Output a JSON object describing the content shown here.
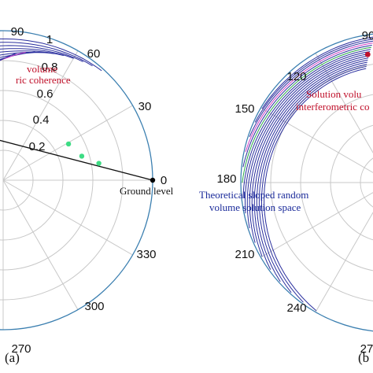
{
  "colors": {
    "outer_circle": "#3b7fb0",
    "grid": "#c8c8c8",
    "axis": "#111111",
    "volume_curves": "#2a2f9e",
    "magenta_curve": "#d040c8",
    "green_curve": "#2aa84a",
    "points": "#3ddc84",
    "ground_point": "#000000",
    "solution_point": "#c0102a",
    "red_text": "#c0102a",
    "blue_text": "#1a2a9a"
  },
  "chart_data": [
    {
      "type": "polar",
      "panel_label": "(a)",
      "radial_ticks": [
        "0.2",
        "0.4",
        "0.6",
        "0.8",
        "1"
      ],
      "angle_ticks": [
        {
          "deg": 0,
          "label": "0"
        },
        {
          "deg": 30,
          "label": "30"
        },
        {
          "deg": 60,
          "label": "60"
        },
        {
          "deg": 90,
          "label": "90"
        },
        {
          "deg": 270,
          "label": "270"
        },
        {
          "deg": 300,
          "label": "300"
        },
        {
          "deg": 330,
          "label": "330"
        }
      ],
      "line": {
        "from": {
          "r": 0.95,
          "theta": 150
        },
        "to": {
          "r": 1.0,
          "theta": 0
        }
      },
      "points": [
        {
          "r": 0.5,
          "theta": 29
        },
        {
          "r": 0.55,
          "theta": 17
        },
        {
          "r": 0.65,
          "theta": 10
        }
      ],
      "ground_point": {
        "r": 1.0,
        "theta": 0
      },
      "annotations": {
        "ground": "Ground level",
        "solution_line1": "volume",
        "solution_line2": "ric coherence"
      }
    },
    {
      "type": "polar",
      "panel_label": "(b",
      "angle_ticks": [
        {
          "deg": 90,
          "label": "90"
        },
        {
          "deg": 120,
          "label": "120"
        },
        {
          "deg": 150,
          "label": "150"
        },
        {
          "deg": 180,
          "label": "180"
        },
        {
          "deg": 210,
          "label": "210"
        },
        {
          "deg": 240,
          "label": "240"
        },
        {
          "deg": 270,
          "label": "27"
        }
      ],
      "solution_point": {
        "r": 0.87,
        "theta": 100
      },
      "annotations": {
        "solution_line1": "Solution volu",
        "solution_line2": "interferometric co",
        "space_line1": "Theoretical sloped random",
        "space_line2": "volume solution space"
      }
    }
  ]
}
